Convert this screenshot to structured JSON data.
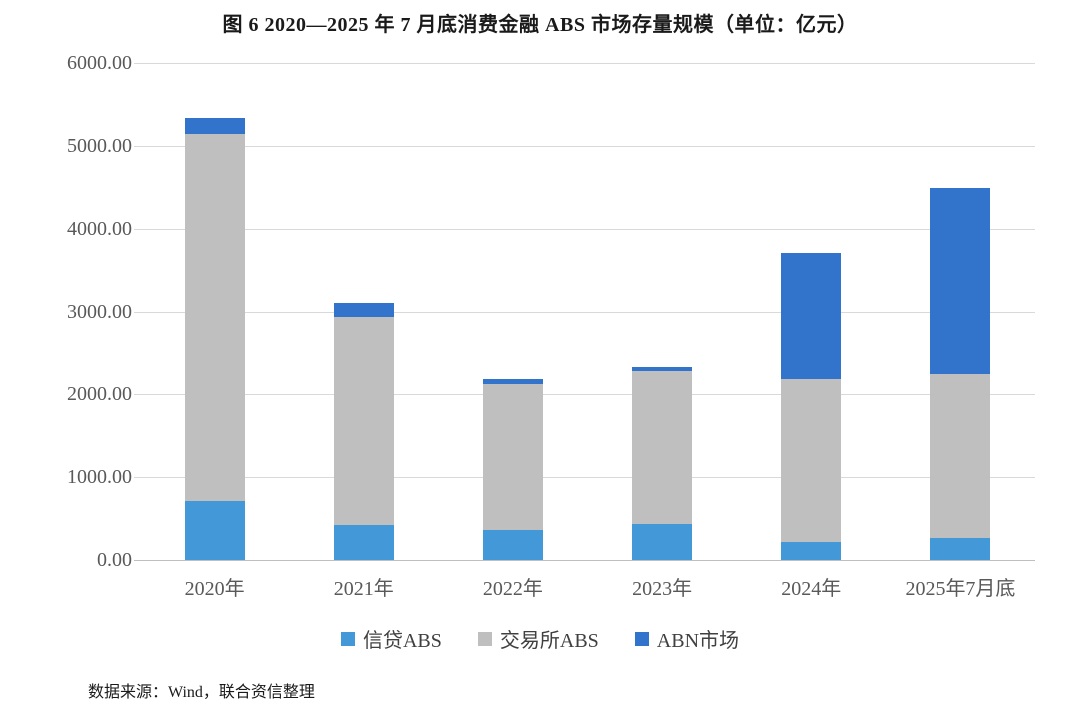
{
  "figure_title": "图 6  2020—2025 年 7 月底消费金融 ABS 市场存量规模（单位：亿元）",
  "source_note": "数据来源：Wind，联合资信整理",
  "chart_data": {
    "type": "bar",
    "stacked": true,
    "title": "图 6  2020—2025 年 7 月底消费金融 ABS 市场存量规模（单位：亿元）",
    "unit": "亿元",
    "categories": [
      "2020年",
      "2021年",
      "2022年",
      "2023年",
      "2024年",
      "2025年7月底"
    ],
    "series": [
      {
        "name": "信贷ABS",
        "color": "#4399d8",
        "values": [
          710,
          420,
          360,
          430,
          220,
          260
        ]
      },
      {
        "name": "交易所ABS",
        "color": "#bfbfbf",
        "values": [
          4430,
          2510,
          1770,
          1850,
          1960,
          1990
        ]
      },
      {
        "name": "ABN市场",
        "color": "#3273cc",
        "values": [
          195,
          170,
          60,
          50,
          1530,
          2240
        ]
      }
    ],
    "totals": [
      5335,
      3100,
      2190,
      2330,
      3710,
      4490
    ],
    "ylim": [
      0,
      6000
    ],
    "ytick_step": 1000,
    "ytick_labels": [
      "0.00",
      "1000.00",
      "2000.00",
      "3000.00",
      "4000.00",
      "5000.00",
      "6000.00"
    ],
    "grid": true,
    "legend_position": "bottom",
    "grid_color": "#d9d9d9",
    "axis_color": "#bfbfbf",
    "tick_text_color": "#595959"
  }
}
